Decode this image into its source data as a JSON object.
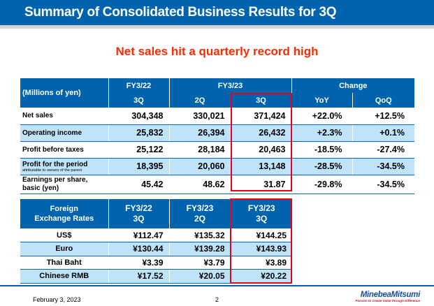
{
  "header": {
    "title": "Summary of Consolidated Business Results for 3Q"
  },
  "headline": "Net sales hit a quarterly record high",
  "results": {
    "unit": "(Millions of yen)",
    "groups": [
      "FY3/22",
      "FY3/23",
      "Change"
    ],
    "cols": [
      "3Q",
      "2Q",
      "3Q",
      "YoY",
      "QoQ"
    ],
    "rows": [
      {
        "label": "Net sales",
        "sub": "",
        "values": [
          "304,348",
          "330,021",
          "371,424",
          "+22.0%",
          "+12.5%"
        ]
      },
      {
        "label": "Operating income",
        "sub": "",
        "values": [
          "25,832",
          "26,394",
          "26,432",
          "+2.3%",
          "+0.1%"
        ]
      },
      {
        "label": "Profit before taxes",
        "sub": "",
        "values": [
          "25,122",
          "28,184",
          "20,463",
          "-18.5%",
          "-27.4%"
        ]
      },
      {
        "label": "Profit for the period",
        "sub": "attributable to owners of the parent",
        "values": [
          "18,395",
          "20,060",
          "13,148",
          "-28.5%",
          "-34.5%"
        ]
      },
      {
        "label": "Earnings per share,",
        "sub2": "basic (yen)",
        "values": [
          "45.42",
          "48.62",
          "31.87",
          "-29.8%",
          "-34.5%"
        ]
      }
    ]
  },
  "fx": {
    "head": [
      "Foreign",
      "Exchange Rates"
    ],
    "cols": [
      [
        "FY3/22",
        "3Q"
      ],
      [
        "FY3/23",
        "2Q"
      ],
      [
        "FY3/23",
        "3Q"
      ]
    ],
    "rows": [
      {
        "label": "US$",
        "values": [
          "¥112.47",
          "¥135.32",
          "¥144.25"
        ]
      },
      {
        "label": "Euro",
        "values": [
          "¥130.44",
          "¥139.28",
          "¥143.93"
        ]
      },
      {
        "label": "Thai Baht",
        "values": [
          "¥3.39",
          "¥3.79",
          "¥3.89"
        ]
      },
      {
        "label": "Chinese RMB",
        "values": [
          "¥17.52",
          "¥20.05",
          "¥20.22"
        ]
      }
    ]
  },
  "footer": {
    "date": "February 3, 2023",
    "page": "2",
    "logo": "MinebeaMitsumi",
    "tagline": "Passion to Create Value through Difference"
  },
  "colors": {
    "brand_blue": "#0063ae",
    "highlight_red": "#e8001c",
    "row_alt": "#bfe3fb",
    "headline_red": "#ff2a00"
  }
}
